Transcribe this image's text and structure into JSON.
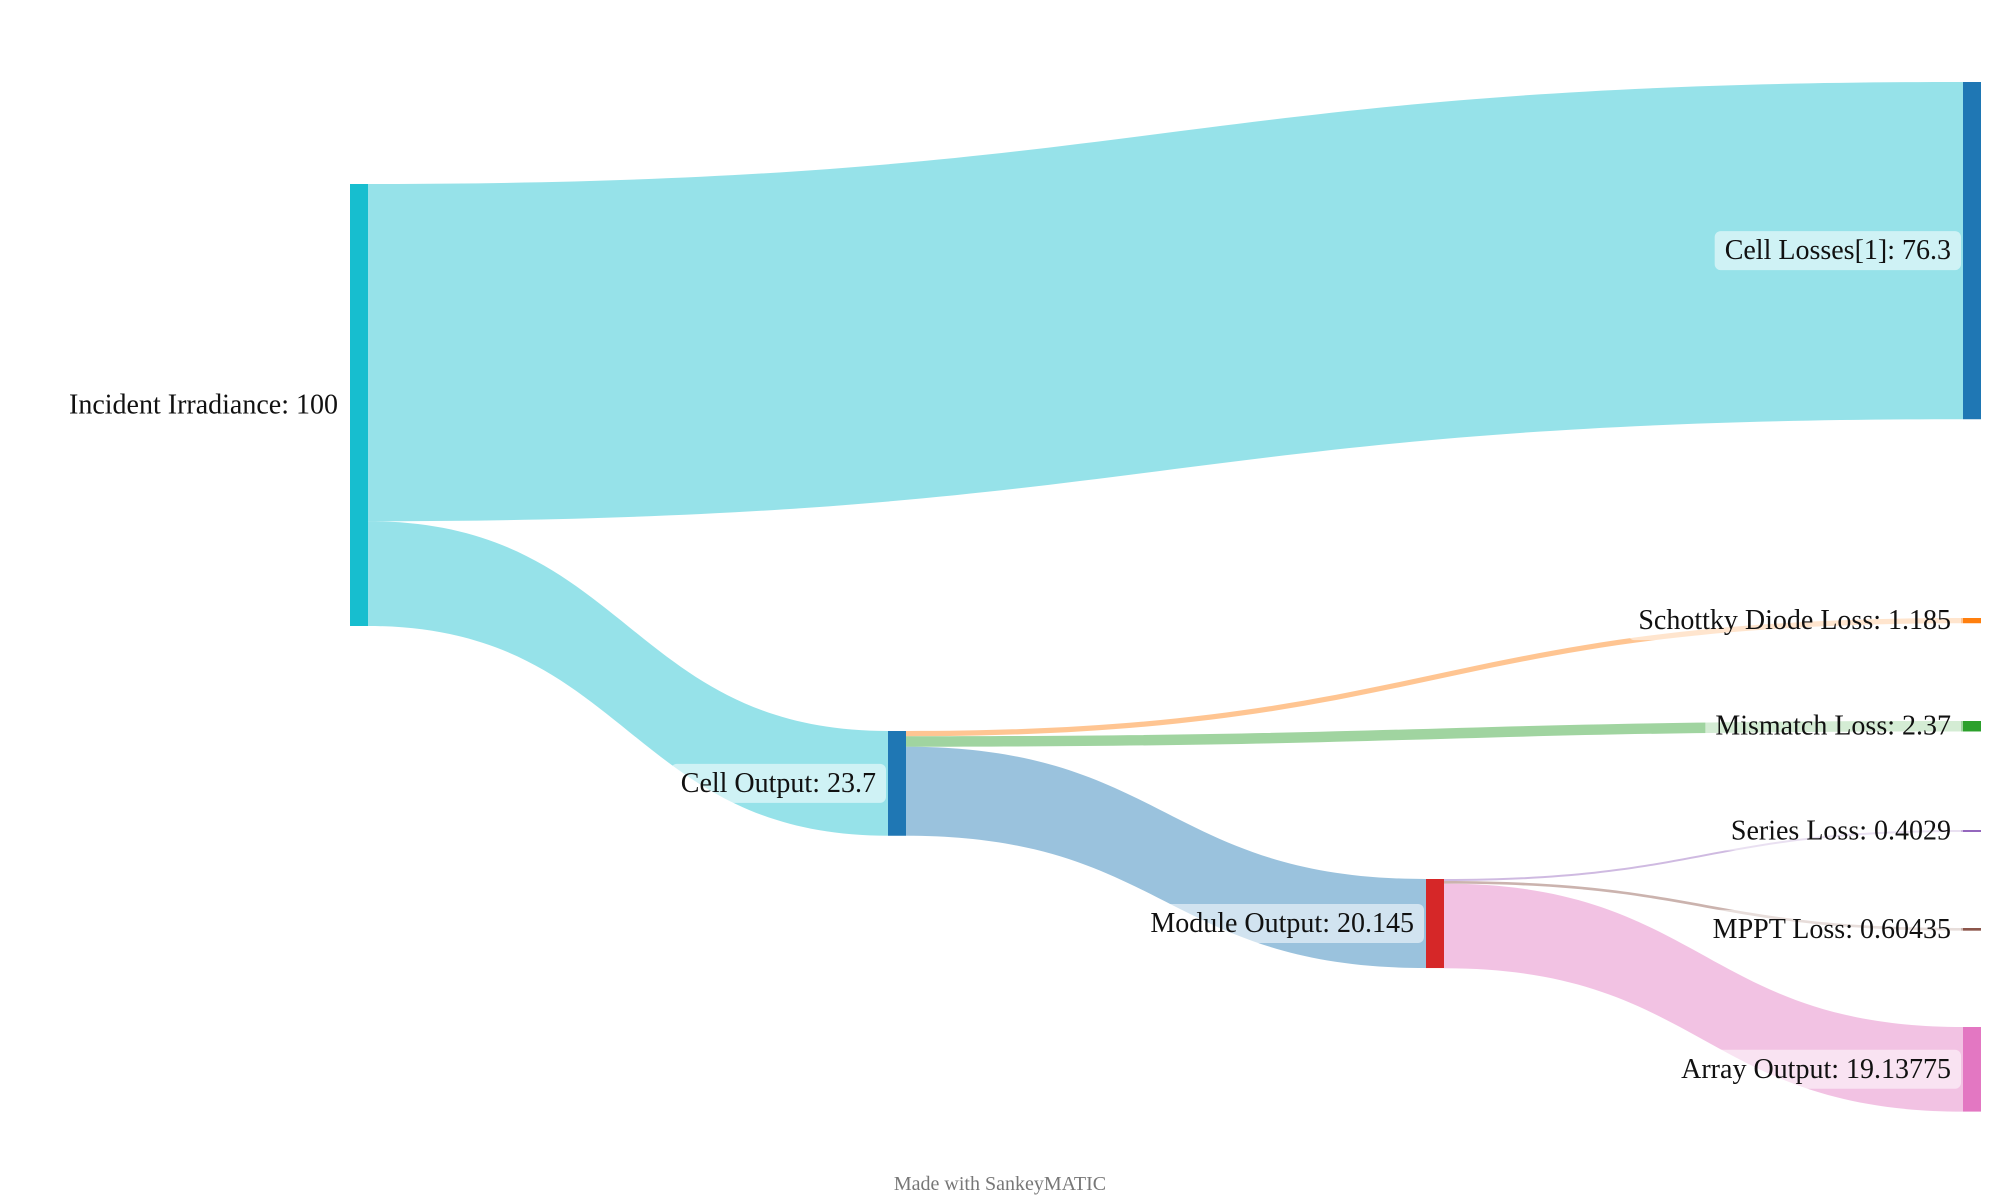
{
  "chart_data": {
    "type": "sankey",
    "nodes": [
      {
        "id": "irr",
        "label": "Incident Irradiance: 100",
        "value": 100,
        "color": "#17becf"
      },
      {
        "id": "loss",
        "label": "Cell Losses[1]: 76.3",
        "value": 76.3,
        "color": "#1f77b4"
      },
      {
        "id": "cell",
        "label": "Cell Output: 23.7",
        "value": 23.7,
        "color": "#1f77b4"
      },
      {
        "id": "diode",
        "label": "Schottky Diode Loss: 1.185",
        "value": 1.185,
        "color": "#ff7f0e"
      },
      {
        "id": "mismatch",
        "label": "Mismatch Loss: 2.37",
        "value": 2.37,
        "color": "#2ca02c"
      },
      {
        "id": "module",
        "label": "Module Output: 20.145",
        "value": 20.145,
        "color": "#d62728"
      },
      {
        "id": "series",
        "label": "Series Loss: 0.4029",
        "value": 0.4029,
        "color": "#9467bd"
      },
      {
        "id": "mppt",
        "label": "MPPT Loss: 0.60435",
        "value": 0.60435,
        "color": "#8c564b"
      },
      {
        "id": "array",
        "label": "Array Output: 19.13775",
        "value": 19.13775,
        "color": "#e377c2"
      }
    ],
    "links": [
      {
        "source": "irr",
        "target": "loss",
        "value": 76.3,
        "color": "#17becf"
      },
      {
        "source": "irr",
        "target": "cell",
        "value": 23.7,
        "color": "#17becf"
      },
      {
        "source": "cell",
        "target": "diode",
        "value": 1.185,
        "color": "#ff7f0e"
      },
      {
        "source": "cell",
        "target": "mismatch",
        "value": 2.37,
        "color": "#2ca02c"
      },
      {
        "source": "cell",
        "target": "module",
        "value": 20.145,
        "color": "#1f77b4"
      },
      {
        "source": "module",
        "target": "series",
        "value": 0.4029,
        "color": "#9467bd"
      },
      {
        "source": "module",
        "target": "mppt",
        "value": 0.60435,
        "color": "#8c564b"
      },
      {
        "source": "module",
        "target": "array",
        "value": 19.13775,
        "color": "#e377c2"
      }
    ]
  },
  "credit": "Made with SankeyMATIC"
}
